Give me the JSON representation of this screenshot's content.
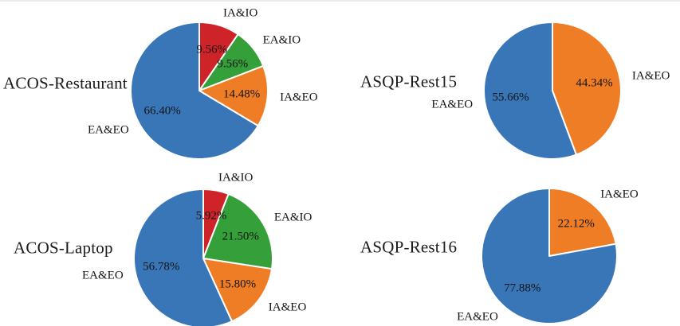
{
  "page": {
    "background": "#ffffff",
    "top_rule_color": "#e8e8ee",
    "text_color": "#1b1b1b"
  },
  "palette": {
    "blue": "#3876b8",
    "orange": "#ef7d26",
    "green": "#35a03a",
    "red": "#ce2429",
    "slice_separator": "#ffffff"
  },
  "chart_data": [
    {
      "type": "pie",
      "title": "ACOS-Restaurant",
      "start_angle": "12 o'clock",
      "direction": "clockwise",
      "legend_position": "outside-labels",
      "slices": [
        {
          "label": "IA&IO",
          "value": 9.56,
          "pct_label": "9.56%",
          "color": "red"
        },
        {
          "label": "EA&IO",
          "value": 9.56,
          "pct_label": "9.56%",
          "color": "green"
        },
        {
          "label": "IA&EO",
          "value": 14.48,
          "pct_label": "14.48%",
          "color": "orange"
        },
        {
          "label": "EA&EO",
          "value": 66.4,
          "pct_label": "66.40%",
          "color": "blue"
        }
      ]
    },
    {
      "type": "pie",
      "title": "ASQP-Rest15",
      "start_angle": "12 o'clock",
      "direction": "clockwise",
      "legend_position": "outside-labels",
      "slices": [
        {
          "label": "IA&EO",
          "value": 44.34,
          "pct_label": "44.34%",
          "color": "orange"
        },
        {
          "label": "EA&EO",
          "value": 55.66,
          "pct_label": "55.66%",
          "color": "blue"
        }
      ]
    },
    {
      "type": "pie",
      "title": "ACOS-Laptop",
      "start_angle": "12 o'clock",
      "direction": "clockwise",
      "legend_position": "outside-labels",
      "slices": [
        {
          "label": "IA&IO",
          "value": 5.92,
          "pct_label": "5.92%",
          "color": "red"
        },
        {
          "label": "EA&IO",
          "value": 21.5,
          "pct_label": "21.50%",
          "color": "green"
        },
        {
          "label": "IA&EO",
          "value": 15.8,
          "pct_label": "15.80%",
          "color": "orange"
        },
        {
          "label": "EA&EO",
          "value": 56.78,
          "pct_label": "56.78%",
          "color": "blue"
        }
      ]
    },
    {
      "type": "pie",
      "title": "ASQP-Rest16",
      "start_angle": "12 o'clock",
      "direction": "clockwise",
      "legend_position": "outside-labels",
      "slices": [
        {
          "label": "IA&EO",
          "value": 22.12,
          "pct_label": "22.12%",
          "color": "orange"
        },
        {
          "label": "EA&EO",
          "value": 77.88,
          "pct_label": "77.88%",
          "color": "blue"
        }
      ]
    }
  ]
}
